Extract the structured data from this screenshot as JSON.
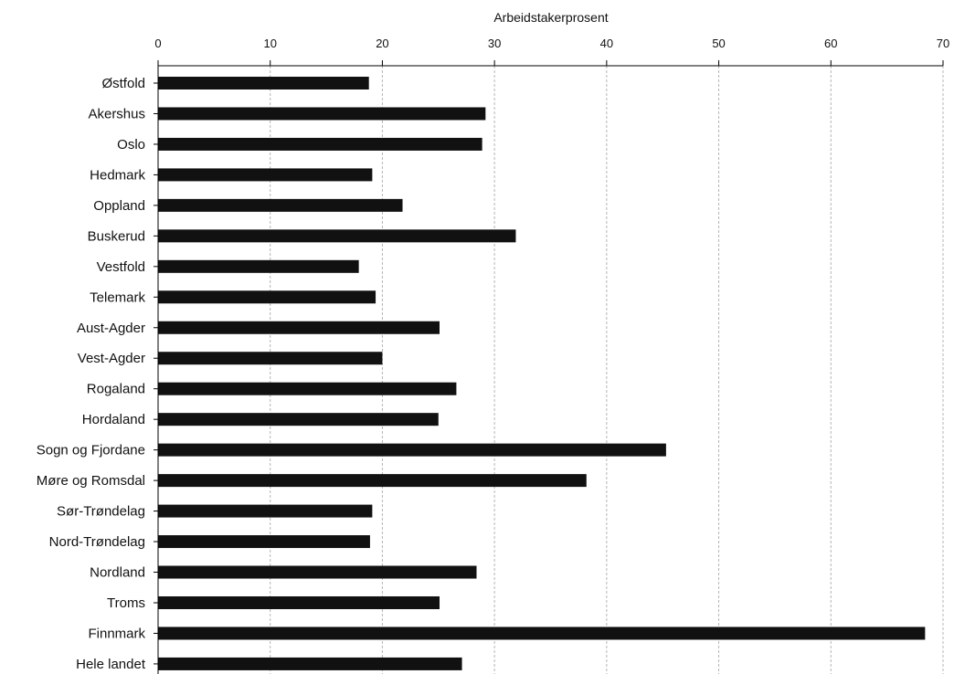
{
  "chart_data": {
    "type": "bar",
    "orientation": "horizontal",
    "xlabel": "Arbeidstakerprosent",
    "xlabel_position": "top",
    "xlim": [
      0,
      70
    ],
    "xticks": [
      0,
      10,
      20,
      30,
      40,
      50,
      60,
      70
    ],
    "grid": true,
    "legend": "none",
    "bar_color": "#111111",
    "categories": [
      "Østfold",
      "Akershus",
      "Oslo",
      "Hedmark",
      "Oppland",
      "Buskerud",
      "Vestfold",
      "Telemark",
      "Aust-Agder",
      "Vest-Agder",
      "Rogaland",
      "Hordaland",
      "Sogn og Fjordane",
      "Møre og Romsdal",
      "Sør-Trøndelag",
      "Nord-Trøndelag",
      "Nordland",
      "Troms",
      "Finnmark",
      "Hele landet"
    ],
    "values": [
      18.8,
      29.2,
      28.9,
      19.1,
      21.8,
      31.9,
      17.9,
      19.4,
      25.1,
      20.0,
      26.6,
      25.0,
      45.3,
      38.2,
      19.1,
      18.9,
      28.4,
      25.1,
      68.4,
      27.1
    ]
  }
}
